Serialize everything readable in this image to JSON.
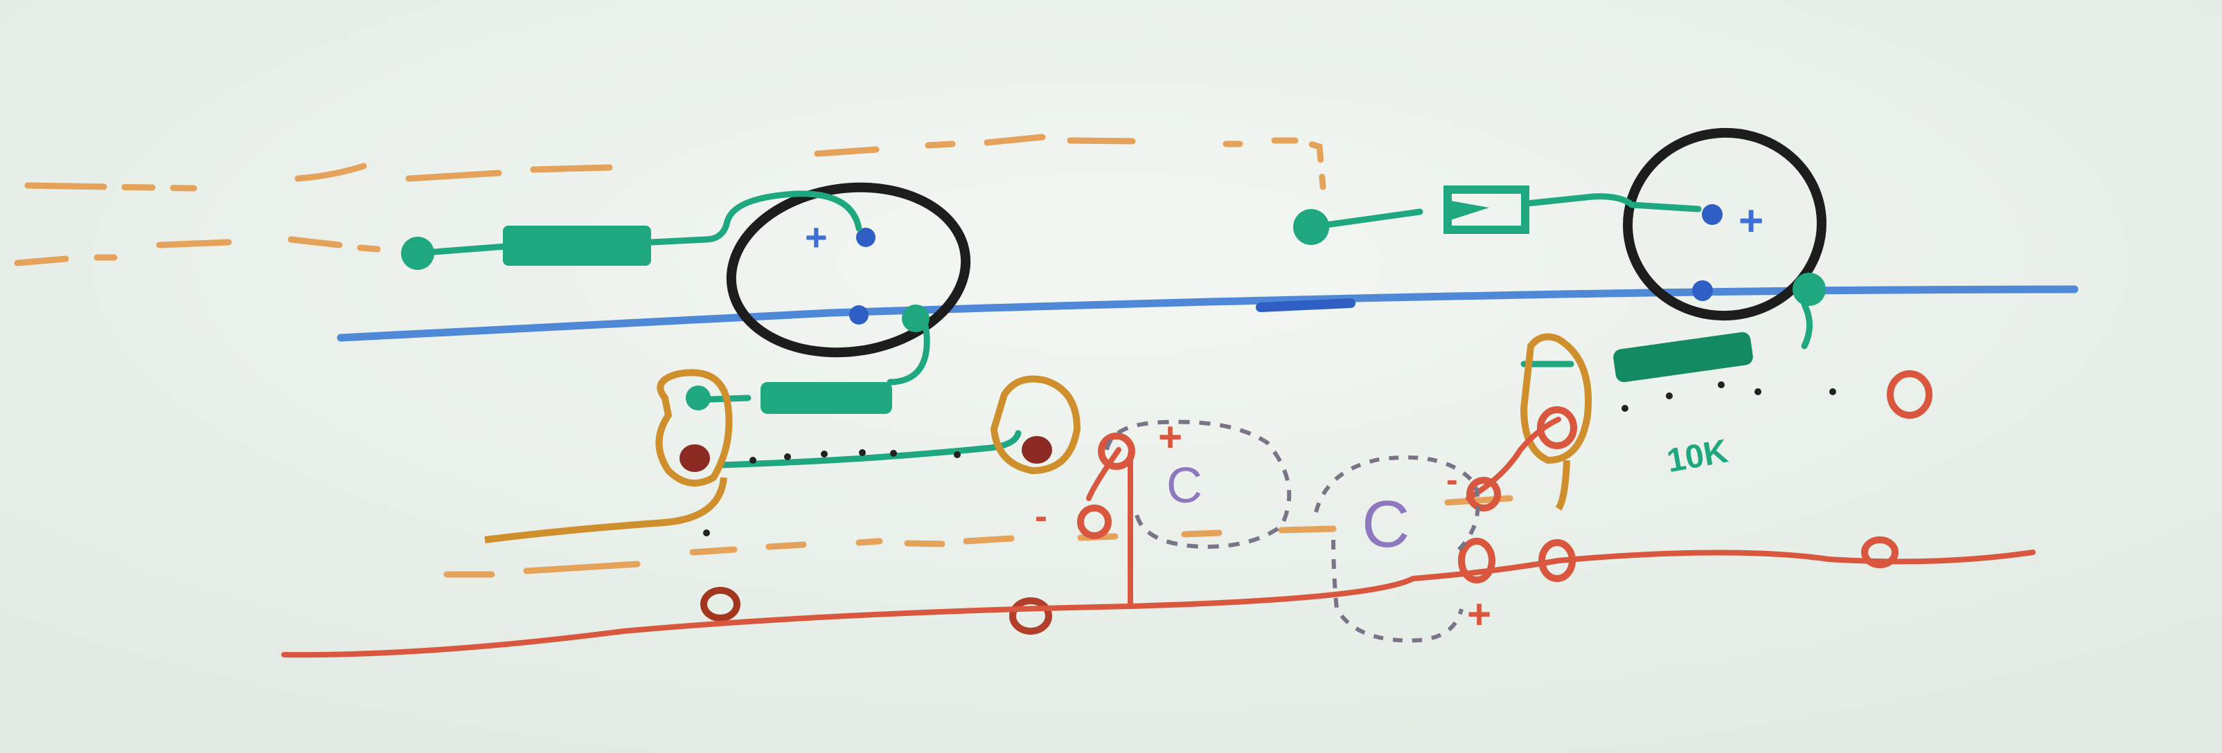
{
  "board": {
    "background": "#e9efe9",
    "colors": {
      "orange": "#e4a25a",
      "dark_orange": "#cf8f2c",
      "teal": "#1fa77f",
      "dark_teal": "#138a62",
      "blue_rail": "#4f88d6",
      "dark_blue": "#2f5fc4",
      "black": "#1d1d1d",
      "red": "#d9573f",
      "dark_red": "#8b2a22",
      "purple": "#8e78c0",
      "dotted_gray": "#7b7488"
    }
  },
  "labels": {
    "cap_left": "C",
    "cap_right": "C",
    "cap_left_plus": "+",
    "cap_left_minus": "-",
    "cap_right_plus": "+",
    "cap_right_minus": "-",
    "resistor_value": "10K",
    "ic_left_plus": "+",
    "ic_right_plus": "+"
  }
}
